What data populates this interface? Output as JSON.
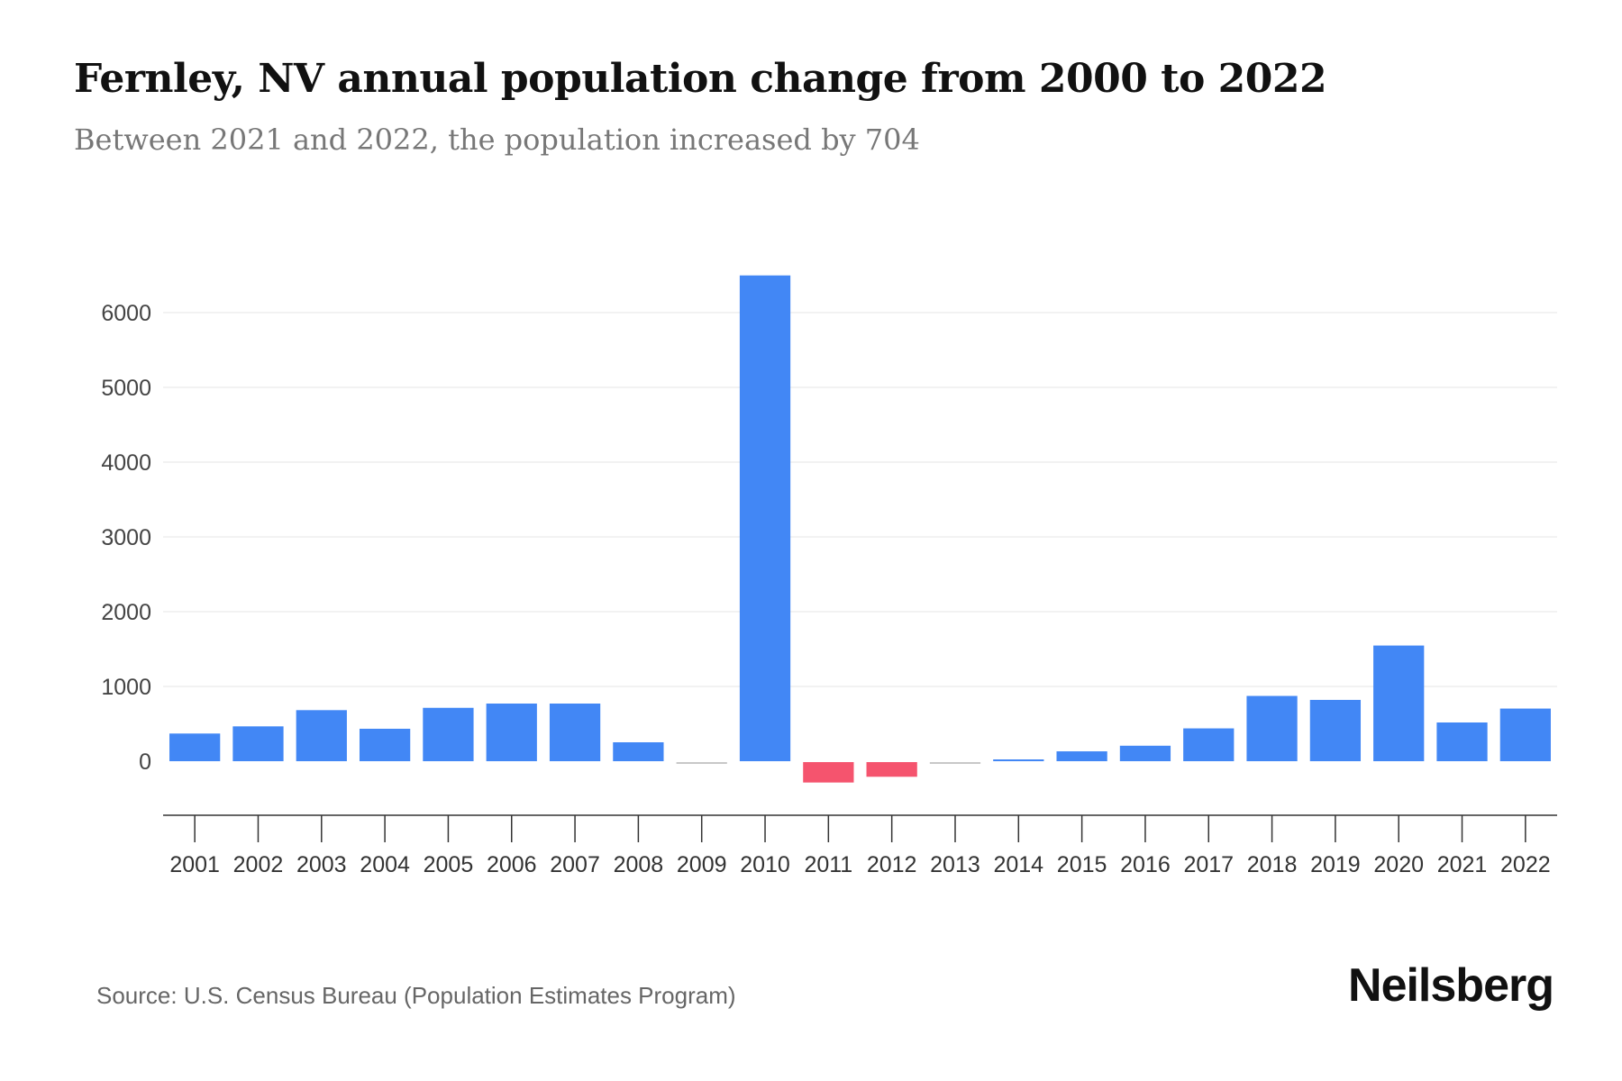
{
  "title": "Fernley, NV annual population change from 2000 to 2022",
  "subtitle": "Between 2021 and 2022, the population increased by 704",
  "source": "Source: U.S. Census Bureau (Population Estimates Program)",
  "logo": "Neilsberg",
  "colors": {
    "positive": "#4287f5",
    "negative": "#f5546e",
    "near_zero": "#c8c8c8"
  },
  "chart_data": {
    "type": "bar",
    "title": "Fernley, NV annual population change from 2000 to 2022",
    "xlabel": "",
    "ylabel": "",
    "ylim": [
      -650,
      6500
    ],
    "yticks": [
      0,
      1000,
      2000,
      3000,
      4000,
      5000,
      6000
    ],
    "grid": true,
    "categories": [
      "2001",
      "2002",
      "2003",
      "2004",
      "2005",
      "2006",
      "2007",
      "2008",
      "2009",
      "2010",
      "2011",
      "2012",
      "2013",
      "2014",
      "2015",
      "2016",
      "2017",
      "2018",
      "2019",
      "2020",
      "2021",
      "2022"
    ],
    "values": [
      370,
      466,
      683,
      434,
      714,
      771,
      771,
      253,
      -5,
      6497,
      -273,
      -196,
      -5,
      20,
      132,
      207,
      439,
      873,
      820,
      1547,
      518,
      704
    ]
  }
}
